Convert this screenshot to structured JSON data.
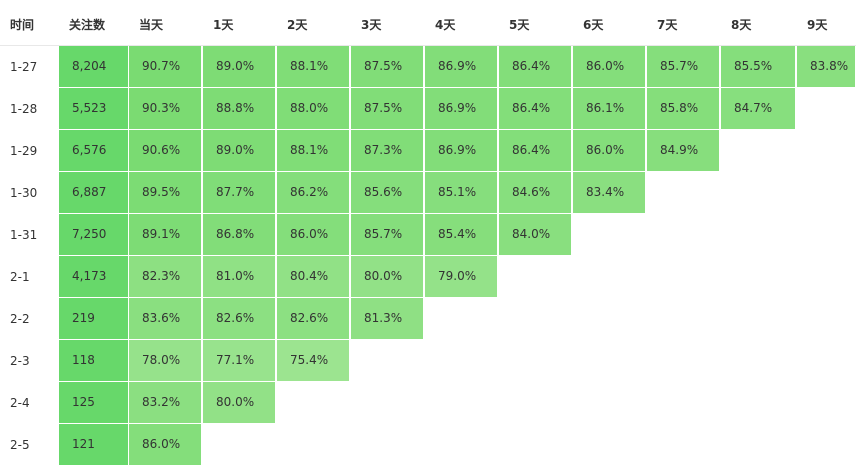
{
  "headers": [
    "时间",
    "关注数",
    "当天",
    "1天",
    "2天",
    "3天",
    "4天",
    "5天",
    "6天",
    "7天",
    "8天",
    "9天"
  ],
  "rows": [
    {
      "date": "1-27",
      "count": "8,204",
      "values": [
        "90.7%",
        "89.0%",
        "88.1%",
        "87.5%",
        "86.9%",
        "86.4%",
        "86.0%",
        "85.7%",
        "85.5%",
        "83.8%"
      ]
    },
    {
      "date": "1-28",
      "count": "5,523",
      "values": [
        "90.3%",
        "88.8%",
        "88.0%",
        "87.5%",
        "86.9%",
        "86.4%",
        "86.1%",
        "85.8%",
        "84.7%"
      ]
    },
    {
      "date": "1-29",
      "count": "6,576",
      "values": [
        "90.6%",
        "89.0%",
        "88.1%",
        "87.3%",
        "86.9%",
        "86.4%",
        "86.0%",
        "84.9%"
      ]
    },
    {
      "date": "1-30",
      "count": "6,887",
      "values": [
        "89.5%",
        "87.7%",
        "86.2%",
        "85.6%",
        "85.1%",
        "84.6%",
        "83.4%"
      ]
    },
    {
      "date": "1-31",
      "count": "7,250",
      "values": [
        "89.1%",
        "86.8%",
        "86.0%",
        "85.7%",
        "85.4%",
        "84.0%"
      ]
    },
    {
      "date": "2-1",
      "count": "4,173",
      "values": [
        "82.3%",
        "81.0%",
        "80.4%",
        "80.0%",
        "79.0%"
      ]
    },
    {
      "date": "2-2",
      "count": "219",
      "values": [
        "83.6%",
        "82.6%",
        "82.6%",
        "81.3%"
      ]
    },
    {
      "date": "2-3",
      "count": "118",
      "values": [
        "78.0%",
        "77.1%",
        "75.4%"
      ]
    },
    {
      "date": "2-4",
      "count": "125",
      "values": [
        "83.2%",
        "80.0%"
      ]
    },
    {
      "date": "2-5",
      "count": "121",
      "values": [
        "86.0%"
      ]
    }
  ],
  "colors": {
    "count_cell": "#67d86a",
    "pct_high": "#7ddc74",
    "pct_low": "#9be48f"
  }
}
